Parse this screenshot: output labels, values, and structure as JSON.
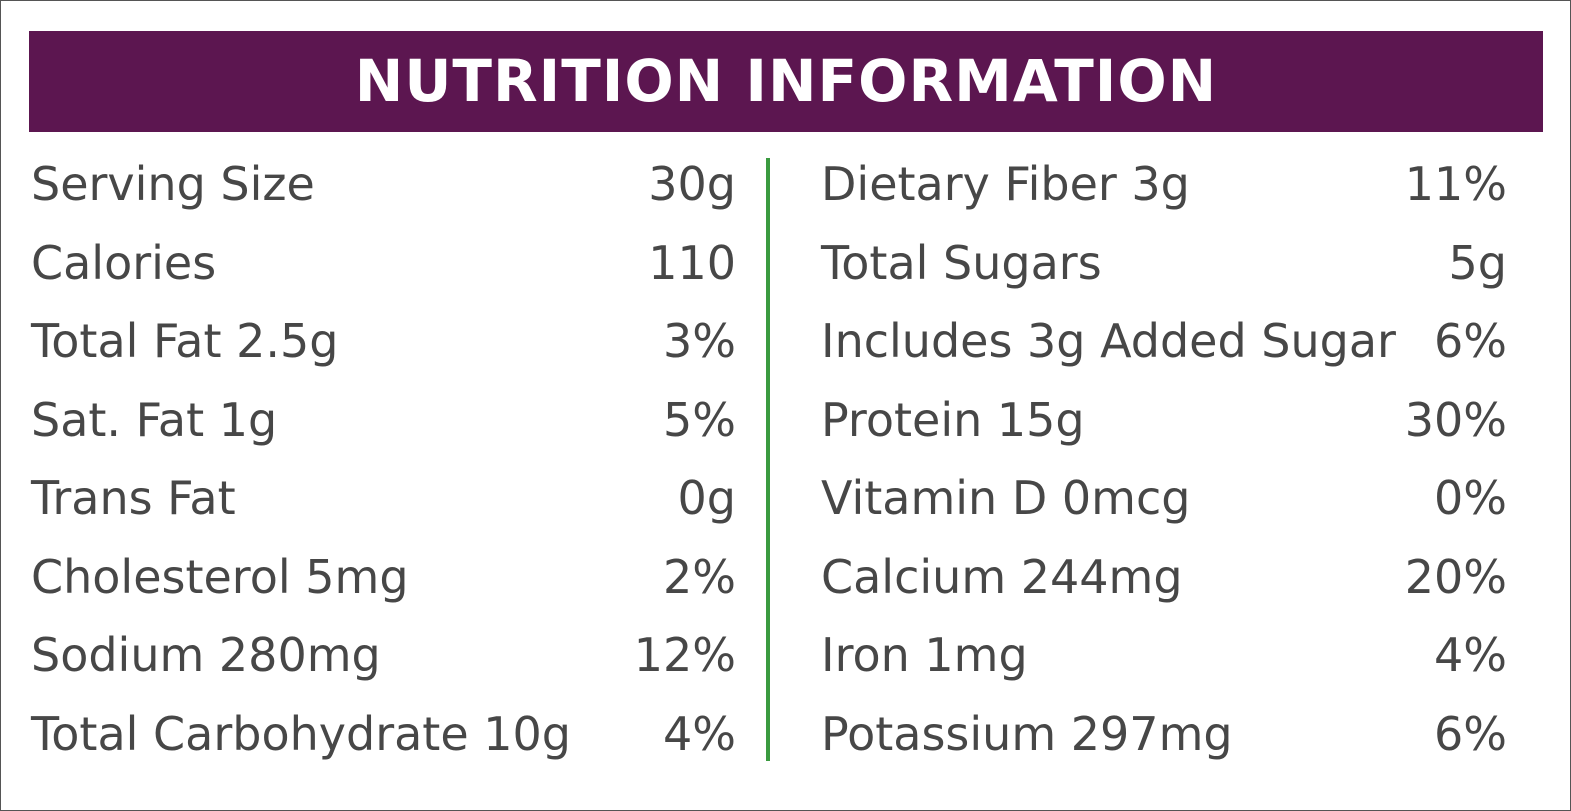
{
  "header": {
    "title": "NUTRITION INFORMATION"
  },
  "table": {
    "left": [
      [
        "Serving Size",
        "30g"
      ],
      [
        "Calories",
        "110"
      ],
      [
        "Total Fat 2.5g",
        "3%"
      ],
      [
        "Sat. Fat 1g",
        "5%"
      ],
      [
        "Trans Fat",
        "0g"
      ],
      [
        "Cholesterol 5mg",
        "2%"
      ],
      [
        "Sodium 280mg",
        "12%"
      ],
      [
        "Total Carbohydrate 10g",
        "4%"
      ]
    ],
    "right": [
      [
        "Dietary Fiber 3g",
        "11%"
      ],
      [
        "Total Sugars",
        "5g"
      ],
      [
        "Includes 3g Added Sugar",
        "6%"
      ],
      [
        "Protein 15g",
        "30%"
      ],
      [
        "Vitamin D 0mcg",
        "0%"
      ],
      [
        "Calcium 244mg",
        "20%"
      ],
      [
        "Iron 1mg",
        "4%"
      ],
      [
        "Potassium 297mg",
        "6%"
      ]
    ]
  }
}
